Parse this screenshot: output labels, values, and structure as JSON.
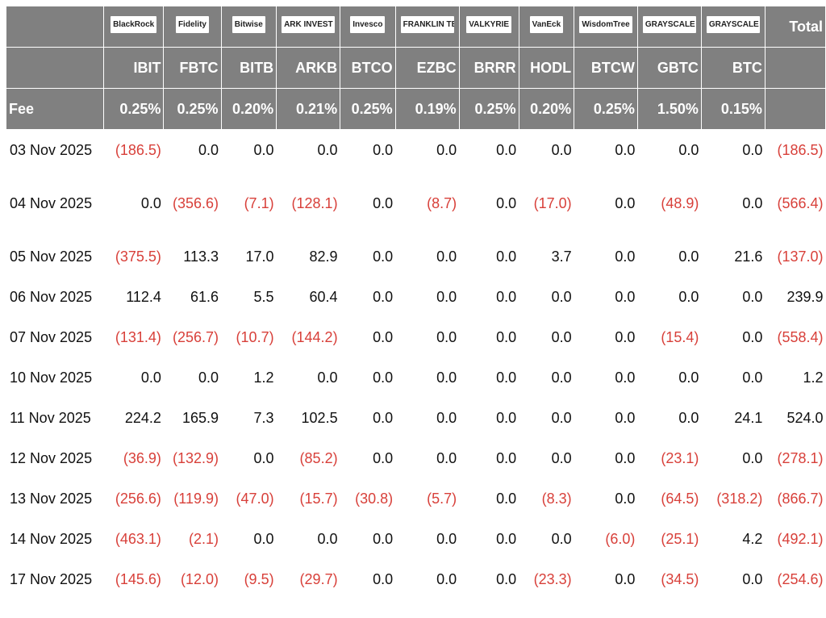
{
  "table": {
    "logos": [
      "BlackRock",
      "Fidelity",
      "Bitwise",
      "ARK INVEST",
      "Invesco",
      "FRANKLIN TEMPLETON",
      "VALKYRIE",
      "VanEck",
      "WisdomTree",
      "GRAYSCALE",
      "GRAYSCALE"
    ],
    "total_header": "Total",
    "tickers": [
      "IBIT",
      "FBTC",
      "BITB",
      "ARKB",
      "BTCO",
      "EZBC",
      "BRRR",
      "HODL",
      "BTCW",
      "GBTC",
      "BTC"
    ],
    "fee_label": "Fee",
    "fees": [
      "0.25%",
      "0.25%",
      "0.20%",
      "0.21%",
      "0.25%",
      "0.19%",
      "0.25%",
      "0.20%",
      "0.25%",
      "1.50%",
      "0.15%"
    ],
    "rows": [
      [
        "03 Nov 2025",
        "(186.5)",
        "0.0",
        "0.0",
        "0.0",
        "0.0",
        "0.0",
        "0.0",
        "0.0",
        "0.0",
        "0.0",
        "0.0",
        "(186.5)"
      ],
      [
        "04 Nov 2025",
        "0.0",
        "(356.6)",
        "(7.1)",
        "(128.1)",
        "0.0",
        "(8.7)",
        "0.0",
        "(17.0)",
        "0.0",
        "(48.9)",
        "0.0",
        "(566.4)"
      ],
      [
        "05 Nov 2025",
        "(375.5)",
        "113.3",
        "17.0",
        "82.9",
        "0.0",
        "0.0",
        "0.0",
        "3.7",
        "0.0",
        "0.0",
        "21.6",
        "(137.0)"
      ],
      [
        "06 Nov 2025",
        "112.4",
        "61.6",
        "5.5",
        "60.4",
        "0.0",
        "0.0",
        "0.0",
        "0.0",
        "0.0",
        "0.0",
        "0.0",
        "239.9"
      ],
      [
        "07 Nov 2025",
        "(131.4)",
        "(256.7)",
        "(10.7)",
        "(144.2)",
        "0.0",
        "0.0",
        "0.0",
        "0.0",
        "0.0",
        "(15.4)",
        "0.0",
        "(558.4)"
      ],
      [
        "10 Nov 2025",
        "0.0",
        "0.0",
        "1.2",
        "0.0",
        "0.0",
        "0.0",
        "0.0",
        "0.0",
        "0.0",
        "0.0",
        "0.0",
        "1.2"
      ],
      [
        "11 Nov 2025",
        "224.2",
        "165.9",
        "7.3",
        "102.5",
        "0.0",
        "0.0",
        "0.0",
        "0.0",
        "0.0",
        "0.0",
        "24.1",
        "524.0"
      ],
      [
        "12 Nov 2025",
        "(36.9)",
        "(132.9)",
        "0.0",
        "(85.2)",
        "0.0",
        "0.0",
        "0.0",
        "0.0",
        "0.0",
        "(23.1)",
        "0.0",
        "(278.1)"
      ],
      [
        "13 Nov 2025",
        "(256.6)",
        "(119.9)",
        "(47.0)",
        "(15.7)",
        "(30.8)",
        "(5.7)",
        "0.0",
        "(8.3)",
        "0.0",
        "(64.5)",
        "(318.2)",
        "(866.7)"
      ],
      [
        "14 Nov 2025",
        "(463.1)",
        "(2.1)",
        "0.0",
        "0.0",
        "0.0",
        "0.0",
        "0.0",
        "0.0",
        "(6.0)",
        "(25.1)",
        "4.2",
        "(492.1)"
      ],
      [
        "17 Nov 2025",
        "(145.6)",
        "(12.0)",
        "(9.5)",
        "(29.7)",
        "0.0",
        "0.0",
        "0.0",
        "(23.3)",
        "0.0",
        "(34.5)",
        "0.0",
        "(254.6)"
      ]
    ]
  }
}
